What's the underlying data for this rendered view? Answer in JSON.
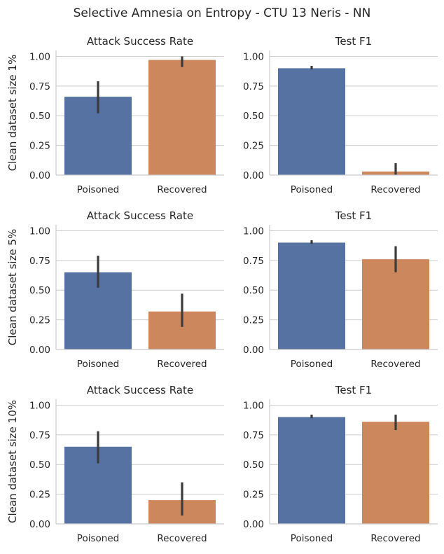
{
  "suptitle": "Selective Amnesia on Entropy - CTU 13 Neris - NN",
  "colors": {
    "poisoned": "#5572a3",
    "recovered": "#cd875c"
  },
  "chart_data": [
    {
      "type": "bar",
      "title": "Attack Success Rate",
      "ylabel": "Clean dataset size 1%",
      "categories": [
        "Poisoned",
        "Recovered"
      ],
      "values": [
        0.66,
        0.97
      ],
      "error_low": [
        0.52,
        0.91
      ],
      "error_high": [
        0.79,
        1.0
      ],
      "ylim": [
        0,
        1.05
      ],
      "yticks": [
        "0.00",
        "0.25",
        "0.50",
        "0.75",
        "1.00"
      ]
    },
    {
      "type": "bar",
      "title": "Test F1",
      "ylabel": "",
      "categories": [
        "Poisoned",
        "Recovered"
      ],
      "values": [
        0.9,
        0.03
      ],
      "error_low": [
        0.89,
        0.0
      ],
      "error_high": [
        0.92,
        0.1
      ],
      "ylim": [
        0,
        1.05
      ],
      "yticks": [
        "0.00",
        "0.25",
        "0.50",
        "0.75",
        "1.00"
      ]
    },
    {
      "type": "bar",
      "title": "Attack Success Rate",
      "ylabel": "Clean dataset size 5%",
      "categories": [
        "Poisoned",
        "Recovered"
      ],
      "values": [
        0.65,
        0.32
      ],
      "error_low": [
        0.52,
        0.19
      ],
      "error_high": [
        0.79,
        0.47
      ],
      "ylim": [
        0,
        1.05
      ],
      "yticks": [
        "0.00",
        "0.25",
        "0.50",
        "0.75",
        "1.00"
      ]
    },
    {
      "type": "bar",
      "title": "Test F1",
      "ylabel": "",
      "categories": [
        "Poisoned",
        "Recovered"
      ],
      "values": [
        0.9,
        0.76
      ],
      "error_low": [
        0.89,
        0.65
      ],
      "error_high": [
        0.92,
        0.87
      ],
      "ylim": [
        0,
        1.05
      ],
      "yticks": [
        "0.00",
        "0.25",
        "0.50",
        "0.75",
        "1.00"
      ]
    },
    {
      "type": "bar",
      "title": "Attack Success Rate",
      "ylabel": "Clean dataset size 10%",
      "categories": [
        "Poisoned",
        "Recovered"
      ],
      "values": [
        0.65,
        0.2
      ],
      "error_low": [
        0.51,
        0.07
      ],
      "error_high": [
        0.78,
        0.35
      ],
      "ylim": [
        0,
        1.05
      ],
      "yticks": [
        "0.00",
        "0.25",
        "0.50",
        "0.75",
        "1.00"
      ]
    },
    {
      "type": "bar",
      "title": "Test F1",
      "ylabel": "",
      "categories": [
        "Poisoned",
        "Recovered"
      ],
      "values": [
        0.9,
        0.86
      ],
      "error_low": [
        0.89,
        0.79
      ],
      "error_high": [
        0.92,
        0.92
      ],
      "ylim": [
        0,
        1.05
      ],
      "yticks": [
        "0.00",
        "0.25",
        "0.50",
        "0.75",
        "1.00"
      ]
    }
  ]
}
